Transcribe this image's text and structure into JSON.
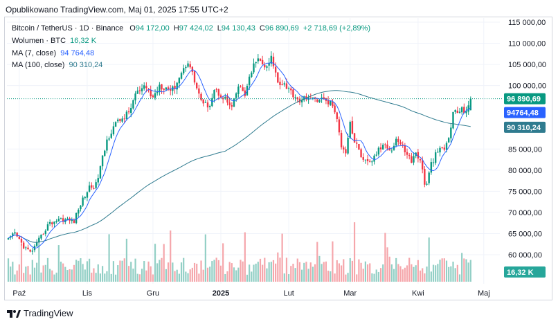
{
  "header": {
    "published": "Opublikowano TradingView.com, Maj 01, 2025 17:55 UTC+2"
  },
  "legend": {
    "symbol": "Bitcoin / TetherUS · 1D · Binance",
    "open_label": "O",
    "open": "94 172,00",
    "high_label": "H",
    "high": "97 424,02",
    "low_label": "L",
    "low": "94 130,43",
    "close_label": "C",
    "close": "96 890,69",
    "change": "+2 718,69 (+2,89%)",
    "volume_label": "Wolumen · BTC",
    "volume_value": "16,32 K",
    "ma7_label": "MA (7, close)",
    "ma7_value": "94 764,48",
    "ma100_label": "MA (100, close)",
    "ma100_value": "90 310,24"
  },
  "badges": {
    "price": "96 890,69",
    "ma7": "94764,48",
    "ma100": "90 310,24",
    "volume": "16,32 K"
  },
  "colors": {
    "up": "#089981",
    "down": "#f23645",
    "vol_up": "#92cfc5",
    "vol_down": "#f5a6ab",
    "ma7": "#2962ff",
    "ma100": "#2f7b8f",
    "grid": "#f0f3fa"
  },
  "footer": {
    "brand": "TradingView",
    "logo_icon": "tradingview-logo-icon"
  },
  "chart_data": {
    "type": "candlestick",
    "symbol": "Bitcoin / TetherUS",
    "interval": "1D",
    "exchange": "Binance",
    "y_axis": {
      "min": 55000,
      "max": 116000,
      "ticks": [
        {
          "value": 115000,
          "label": "115 000,00"
        },
        {
          "value": 110000,
          "label": "110 000,00"
        },
        {
          "value": 105000,
          "label": "105 000,00"
        },
        {
          "value": 100000,
          "label": "100 000,00"
        },
        {
          "value": 85000,
          "label": "85 000,00"
        },
        {
          "value": 80000,
          "label": "80 000,00"
        },
        {
          "value": 75000,
          "label": "75 000,00"
        },
        {
          "value": 70000,
          "label": "70 000,00"
        },
        {
          "value": 65000,
          "label": "65 000,00"
        },
        {
          "value": 60000,
          "label": "60 000,00"
        }
      ]
    },
    "x_axis": {
      "ticks": [
        {
          "label": "Paź",
          "day": 5,
          "bold": false
        },
        {
          "label": "Lis",
          "day": 36,
          "bold": false
        },
        {
          "label": "Gru",
          "day": 66,
          "bold": false
        },
        {
          "label": "2025",
          "day": 97,
          "bold": true
        },
        {
          "label": "Lut",
          "day": 128,
          "bold": false
        },
        {
          "label": "Mar",
          "day": 156,
          "bold": false
        },
        {
          "label": "Kwi",
          "day": 187,
          "bold": false
        },
        {
          "label": "Maj",
          "day": 217,
          "bold": false
        }
      ]
    },
    "close_anchors": [
      [
        0,
        63500
      ],
      [
        3,
        65000
      ],
      [
        7,
        62000
      ],
      [
        10,
        60500
      ],
      [
        13,
        62500
      ],
      [
        18,
        67000
      ],
      [
        23,
        68500
      ],
      [
        30,
        68000
      ],
      [
        33,
        72000
      ],
      [
        37,
        76000
      ],
      [
        40,
        76500
      ],
      [
        45,
        87000
      ],
      [
        48,
        90500
      ],
      [
        55,
        93500
      ],
      [
        58,
        98000
      ],
      [
        63,
        99500
      ],
      [
        66,
        97000
      ],
      [
        69,
        100200
      ],
      [
        75,
        99000
      ],
      [
        79,
        103000
      ],
      [
        82,
        106000
      ],
      [
        86,
        99500
      ],
      [
        89,
        95200
      ],
      [
        92,
        95800
      ],
      [
        94,
        99000
      ],
      [
        98,
        97500
      ],
      [
        102,
        94500
      ],
      [
        105,
        99800
      ],
      [
        108,
        98000
      ],
      [
        113,
        106300
      ],
      [
        116,
        105000
      ],
      [
        118,
        104000
      ],
      [
        120,
        106500
      ],
      [
        123,
        101000
      ],
      [
        126,
        100500
      ],
      [
        129,
        98500
      ],
      [
        131,
        97500
      ],
      [
        134,
        96000
      ],
      [
        136,
        97600
      ],
      [
        139,
        96500
      ],
      [
        142,
        97000
      ],
      [
        145,
        96200
      ],
      [
        148,
        95600
      ],
      [
        150,
        91500
      ],
      [
        152,
        86000
      ],
      [
        154,
        84500
      ],
      [
        156,
        91500
      ],
      [
        158,
        86500
      ],
      [
        160,
        85000
      ],
      [
        162,
        82000
      ],
      [
        165,
        81500
      ],
      [
        168,
        84000
      ],
      [
        172,
        86500
      ],
      [
        175,
        84500
      ],
      [
        177,
        87500
      ],
      [
        179,
        86000
      ],
      [
        182,
        84000
      ],
      [
        184,
        82000
      ],
      [
        186,
        84000
      ],
      [
        188,
        82500
      ],
      [
        190,
        77000
      ],
      [
        191,
        76500
      ],
      [
        193,
        81500
      ],
      [
        196,
        84500
      ],
      [
        199,
        85000
      ],
      [
        201,
        87500
      ],
      [
        203,
        93500
      ],
      [
        206,
        94000
      ],
      [
        209,
        94300
      ],
      [
        211,
        96890.69
      ]
    ],
    "ma7_final": 94764.48,
    "ma100_final": 90310.24,
    "last_bar": {
      "open": 94172.0,
      "high": 97424.02,
      "low": 94130.43,
      "close": 96890.69,
      "change": 2718.69,
      "change_pct": 2.89
    },
    "volume_last": "16,32 K"
  }
}
